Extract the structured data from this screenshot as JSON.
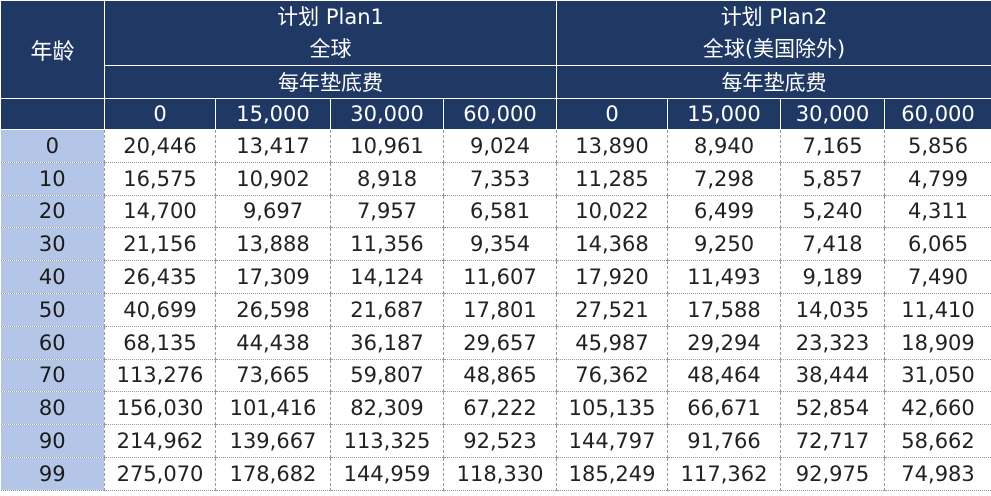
{
  "header": {
    "age_label": "年龄",
    "plans": [
      {
        "name": "计划 Plan1",
        "region": "全球",
        "deductible_label": "每年垫底费",
        "deductibles": [
          "0",
          "15,000",
          "30,000",
          "60,000"
        ]
      },
      {
        "name": "计划 Plan2",
        "region": "全球(美国除外)",
        "deductible_label": "每年垫底费",
        "deductibles": [
          "0",
          "15,000",
          "30,000",
          "60,000"
        ]
      }
    ]
  },
  "rows": [
    {
      "age": "0",
      "values": [
        "20,446",
        "13,417",
        "10,961",
        "9,024",
        "13,890",
        "8,940",
        "7,165",
        "5,856"
      ]
    },
    {
      "age": "10",
      "values": [
        "16,575",
        "10,902",
        "8,918",
        "7,353",
        "11,285",
        "7,298",
        "5,857",
        "4,799"
      ]
    },
    {
      "age": "20",
      "values": [
        "14,700",
        "9,697",
        "7,957",
        "6,581",
        "10,022",
        "6,499",
        "5,240",
        "4,311"
      ]
    },
    {
      "age": "30",
      "values": [
        "21,156",
        "13,888",
        "11,356",
        "9,354",
        "14,368",
        "9,250",
        "7,418",
        "6,065"
      ]
    },
    {
      "age": "40",
      "values": [
        "26,435",
        "17,309",
        "14,124",
        "11,607",
        "17,920",
        "11,493",
        "9,189",
        "7,490"
      ]
    },
    {
      "age": "50",
      "values": [
        "40,699",
        "26,598",
        "21,687",
        "17,801",
        "27,521",
        "17,588",
        "14,035",
        "11,410"
      ]
    },
    {
      "age": "60",
      "values": [
        "68,135",
        "44,438",
        "36,187",
        "29,657",
        "45,987",
        "29,294",
        "23,323",
        "18,909"
      ]
    },
    {
      "age": "70",
      "values": [
        "113,276",
        "73,665",
        "59,807",
        "48,865",
        "76,362",
        "48,464",
        "38,444",
        "31,050"
      ]
    },
    {
      "age": "80",
      "values": [
        "156,030",
        "101,416",
        "82,309",
        "67,222",
        "105,135",
        "66,671",
        "52,854",
        "42,660"
      ]
    },
    {
      "age": "90",
      "values": [
        "214,962",
        "139,667",
        "113,325",
        "92,523",
        "144,797",
        "91,766",
        "72,717",
        "58,662"
      ]
    },
    {
      "age": "99",
      "values": [
        "275,070",
        "178,682",
        "144,959",
        "118,330",
        "185,249",
        "117,362",
        "92,975",
        "74,983"
      ]
    }
  ],
  "colors": {
    "header_bg": "#1f3864",
    "age_column_bg": "#b4c6e7"
  }
}
